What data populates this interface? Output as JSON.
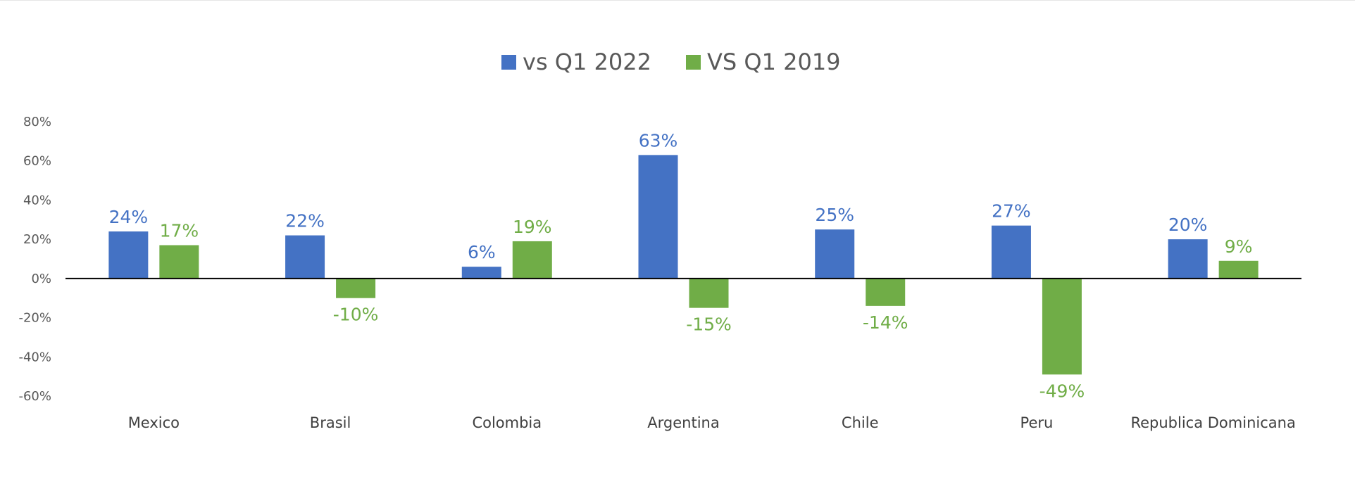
{
  "chart_data": {
    "type": "bar",
    "title": "",
    "xlabel": "",
    "ylabel": "",
    "categories": [
      "Mexico",
      "Brasil",
      "Colombia",
      "Argentina",
      "Chile",
      "Peru",
      "Republica Dominicana"
    ],
    "series": [
      {
        "name": "vs Q1 2022",
        "color": "#4472C4",
        "values": [
          24,
          22,
          6,
          63,
          25,
          27,
          20
        ],
        "labels": [
          "24%",
          "22%",
          "6%",
          "63%",
          "25%",
          "27%",
          "20%"
        ]
      },
      {
        "name": "VS Q1 2019",
        "color": "#70AD47",
        "values": [
          17,
          -10,
          19,
          -15,
          -14,
          -49,
          9
        ],
        "labels": [
          "17%",
          "-10%",
          "19%",
          "-15%",
          "-14%",
          "-49%",
          "9%"
        ]
      }
    ],
    "ylim": [
      -60,
      80
    ],
    "yticks": [
      80,
      60,
      40,
      20,
      0,
      -20,
      -40,
      -60
    ],
    "ytick_labels": [
      "80%",
      "60%",
      "40%",
      "20%",
      "0%",
      "-20%",
      "-40%",
      "-60%"
    ],
    "legend_position": "top-center",
    "grid": false,
    "label_color": {
      "vs Q1 2022": "#4472C4",
      "VS Q1 2019": "#70AD47"
    }
  }
}
